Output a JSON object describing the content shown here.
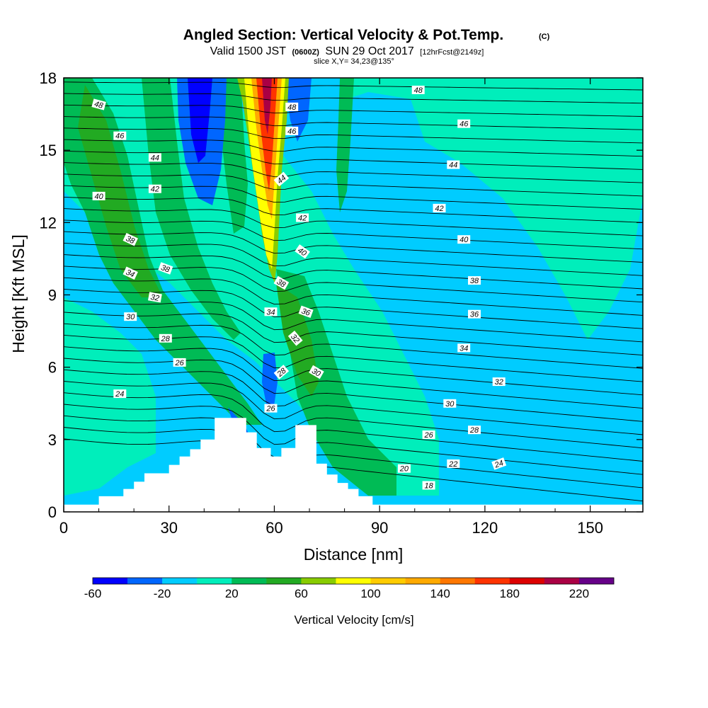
{
  "header": {
    "title": "Angled Section: Vertical Velocity & Pot.Temp.",
    "title_suffix": "(C)",
    "valid_prefix": "Valid 1500 JST",
    "valid_zulu": "(0600Z)",
    "valid_date": "SUN 29 Oct 2017",
    "valid_fcst": "[12hrFcst@2149z]",
    "slice": "slice X,Y= 34,23@135°"
  },
  "chart_data": {
    "type": "heatmap",
    "title": "Angled Section: Vertical Velocity & Pot.Temp.",
    "xlabel": "Distance [nm]",
    "ylabel": "Height [Kft MSL]",
    "xlim": [
      0,
      165
    ],
    "ylim": [
      0,
      18
    ],
    "x_ticks": [
      "0",
      "30",
      "60",
      "90",
      "120",
      "150"
    ],
    "x_tick_values": [
      0,
      30,
      60,
      90,
      120,
      150
    ],
    "y_ticks": [
      "0",
      "3",
      "6",
      "9",
      "12",
      "15",
      "18"
    ],
    "y_tick_values": [
      0,
      3,
      6,
      9,
      12,
      15,
      18
    ],
    "colorbar": {
      "label": "Vertical Velocity [cm/s]",
      "bounds": [
        -60,
        240
      ],
      "step": 20,
      "tick_labels": [
        "-60",
        "-20",
        "20",
        "60",
        "100",
        "140",
        "180",
        "220"
      ],
      "tick_values": [
        -60,
        -20,
        20,
        60,
        100,
        140,
        180,
        220
      ],
      "colors": [
        "#0000ff",
        "#0066ff",
        "#00ccff",
        "#00eebb",
        "#00bb55",
        "#22aa22",
        "#88cc00",
        "#ffff00",
        "#ffcc00",
        "#ffaa00",
        "#ff7700",
        "#ff3300",
        "#dd0000",
        "#aa0044",
        "#660088"
      ]
    },
    "terrain": {
      "x": [
        0,
        10,
        10,
        17,
        17,
        20,
        20,
        23,
        23,
        30,
        30,
        33,
        33,
        36,
        36,
        39,
        39,
        43,
        43,
        52,
        52,
        55,
        55,
        59,
        59,
        62,
        62,
        66,
        66,
        72,
        72,
        75,
        75,
        78,
        78,
        81,
        81,
        84,
        84,
        88,
        88,
        165
      ],
      "z": [
        0.3,
        0.3,
        0.65,
        0.65,
        0.95,
        0.95,
        1.25,
        1.25,
        1.6,
        1.6,
        1.95,
        1.95,
        2.3,
        2.3,
        2.6,
        2.6,
        3.0,
        3.0,
        3.9,
        3.9,
        3.3,
        3.3,
        2.65,
        2.65,
        2.3,
        2.3,
        2.65,
        2.65,
        3.6,
        3.6,
        2.0,
        2.0,
        1.55,
        1.55,
        1.2,
        1.2,
        0.95,
        0.95,
        0.65,
        0.65,
        0.3,
        0.3
      ]
    },
    "isentrope_labels": [
      {
        "text": "48",
        "x": 10,
        "z": 16.9,
        "rot": 15
      },
      {
        "text": "46",
        "x": 16,
        "z": 15.6,
        "rot": 0
      },
      {
        "text": "44",
        "x": 26,
        "z": 14.7,
        "rot": 0
      },
      {
        "text": "42",
        "x": 26,
        "z": 13.4,
        "rot": 0
      },
      {
        "text": "40",
        "x": 10,
        "z": 13.1,
        "rot": 0
      },
      {
        "text": "38",
        "x": 19,
        "z": 11.3,
        "rot": 25
      },
      {
        "text": "38",
        "x": 29,
        "z": 10.1,
        "rot": 20
      },
      {
        "text": "34",
        "x": 19,
        "z": 9.9,
        "rot": 25
      },
      {
        "text": "32",
        "x": 26,
        "z": 8.9,
        "rot": 10
      },
      {
        "text": "30",
        "x": 19,
        "z": 8.1,
        "rot": 0
      },
      {
        "text": "28",
        "x": 29,
        "z": 7.2,
        "rot": 0
      },
      {
        "text": "26",
        "x": 33,
        "z": 6.2,
        "rot": 0
      },
      {
        "text": "24",
        "x": 16,
        "z": 4.9,
        "rot": 0
      },
      {
        "text": "48",
        "x": 65,
        "z": 16.8,
        "rot": 0
      },
      {
        "text": "46",
        "x": 65,
        "z": 15.8,
        "rot": 0
      },
      {
        "text": "44",
        "x": 62,
        "z": 13.8,
        "rot": -40
      },
      {
        "text": "42",
        "x": 68,
        "z": 12.2,
        "rot": 0
      },
      {
        "text": "40",
        "x": 68,
        "z": 10.8,
        "rot": 35
      },
      {
        "text": "38",
        "x": 62,
        "z": 9.5,
        "rot": 30
      },
      {
        "text": "34",
        "x": 59,
        "z": 8.3,
        "rot": 0
      },
      {
        "text": "36",
        "x": 69,
        "z": 8.3,
        "rot": 20
      },
      {
        "text": "32",
        "x": 66,
        "z": 7.2,
        "rot": 50
      },
      {
        "text": "28",
        "x": 62,
        "z": 5.8,
        "rot": -40
      },
      {
        "text": "30",
        "x": 72,
        "z": 5.8,
        "rot": 30
      },
      {
        "text": "26",
        "x": 59,
        "z": 4.3,
        "rot": 0
      },
      {
        "text": "48",
        "x": 101,
        "z": 17.5,
        "rot": 0
      },
      {
        "text": "46",
        "x": 114,
        "z": 16.1,
        "rot": 0
      },
      {
        "text": "44",
        "x": 111,
        "z": 14.4,
        "rot": 0
      },
      {
        "text": "42",
        "x": 107,
        "z": 12.6,
        "rot": 0
      },
      {
        "text": "40",
        "x": 114,
        "z": 11.3,
        "rot": 0
      },
      {
        "text": "38",
        "x": 117,
        "z": 9.6,
        "rot": 0
      },
      {
        "text": "36",
        "x": 117,
        "z": 8.2,
        "rot": 0
      },
      {
        "text": "34",
        "x": 114,
        "z": 6.8,
        "rot": 0
      },
      {
        "text": "32",
        "x": 124,
        "z": 5.4,
        "rot": 0
      },
      {
        "text": "30",
        "x": 110,
        "z": 4.5,
        "rot": 0
      },
      {
        "text": "28",
        "x": 117,
        "z": 3.4,
        "rot": 0
      },
      {
        "text": "26",
        "x": 104,
        "z": 3.2,
        "rot": 0
      },
      {
        "text": "24",
        "x": 124,
        "z": 2.0,
        "rot": -20
      },
      {
        "text": "22",
        "x": 111,
        "z": 2.0,
        "rot": 0
      },
      {
        "text": "20",
        "x": 97,
        "z": 1.8,
        "rot": 0
      },
      {
        "text": "18",
        "x": 104,
        "z": 1.1,
        "rot": 0
      }
    ]
  }
}
